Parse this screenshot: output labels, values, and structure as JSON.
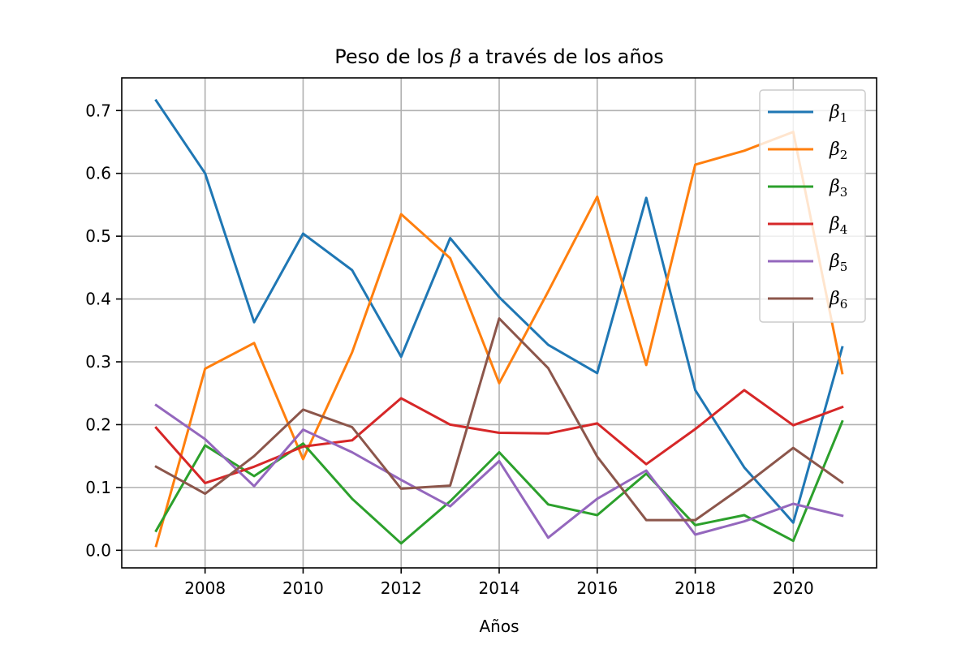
{
  "chart_data": {
    "type": "line",
    "title": "Peso de los β a través de los años",
    "xlabel": "Años",
    "ylabel": "",
    "xlim": [
      2006.3,
      2021.7
    ],
    "ylim": [
      -0.028,
      0.752
    ],
    "xticks": [
      2008,
      2010,
      2012,
      2014,
      2016,
      2018,
      2020
    ],
    "yticks": [
      0.0,
      0.1,
      0.2,
      0.3,
      0.4,
      0.5,
      0.6,
      0.7
    ],
    "grid": true,
    "legend": "top-right",
    "x": [
      2007,
      2008,
      2009,
      2010,
      2011,
      2012,
      2013,
      2014,
      2015,
      2016,
      2017,
      2018,
      2019,
      2020,
      2021
    ],
    "series": [
      {
        "name": "β",
        "sub": "1",
        "color": "#1f77b4",
        "values": [
          0.716,
          0.6,
          0.363,
          0.504,
          0.446,
          0.308,
          0.497,
          0.403,
          0.327,
          0.282,
          0.561,
          0.255,
          0.132,
          0.044,
          0.323
        ]
      },
      {
        "name": "β",
        "sub": "2",
        "color": "#ff7f0e",
        "values": [
          0.007,
          0.289,
          0.33,
          0.145,
          0.315,
          0.535,
          0.465,
          0.266,
          0.412,
          0.563,
          0.295,
          0.614,
          0.636,
          0.666,
          0.282
        ]
      },
      {
        "name": "β",
        "sub": "3",
        "color": "#2ca02c",
        "values": [
          0.031,
          0.167,
          0.118,
          0.17,
          0.082,
          0.011,
          0.078,
          0.156,
          0.073,
          0.056,
          0.122,
          0.04,
          0.056,
          0.015,
          0.205
        ]
      },
      {
        "name": "β",
        "sub": "4",
        "color": "#d62728",
        "values": [
          0.195,
          0.107,
          0.133,
          0.165,
          0.175,
          0.242,
          0.2,
          0.187,
          0.186,
          0.202,
          0.137,
          0.193,
          0.255,
          0.199,
          0.228
        ]
      },
      {
        "name": "β",
        "sub": "5",
        "color": "#9467bd",
        "values": [
          0.231,
          0.177,
          0.102,
          0.192,
          0.156,
          0.112,
          0.07,
          0.142,
          0.02,
          0.082,
          0.127,
          0.025,
          0.046,
          0.074,
          0.055
        ]
      },
      {
        "name": "β",
        "sub": "6",
        "color": "#8c564b",
        "values": [
          0.133,
          0.09,
          0.15,
          0.224,
          0.196,
          0.098,
          0.103,
          0.369,
          0.29,
          0.149,
          0.048,
          0.048,
          0.103,
          0.163,
          0.108
        ]
      }
    ]
  }
}
